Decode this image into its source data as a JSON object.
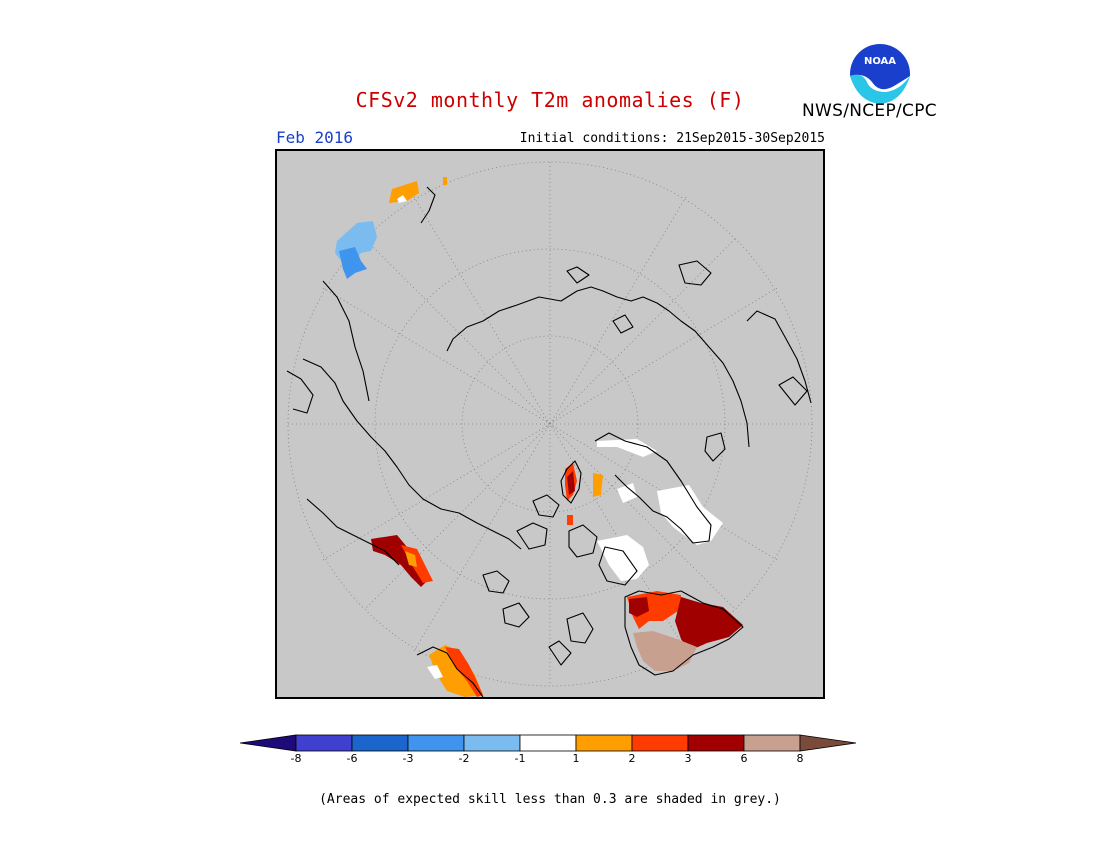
{
  "header": {
    "title": "CFSv2 monthly T2m anomalies (F)",
    "agency": "NWS/NCEP/CPC",
    "valid_month": "Feb 2016",
    "initial_conditions": "Initial conditions: 21Sep2015-30Sep2015",
    "logo_text": "NOAA"
  },
  "legend": {
    "bins": [
      {
        "label": "-8",
        "color": "#1e0a78"
      },
      {
        "label": "-6",
        "color": "#3f3fd0"
      },
      {
        "label": "-3",
        "color": "#1a66cc"
      },
      {
        "label": "-2",
        "color": "#3f94ee"
      },
      {
        "label": "-1",
        "color": "#7abcf0"
      },
      {
        "label": "1",
        "color": "#ffffff"
      },
      {
        "label": "2",
        "color": "#ff9e00"
      },
      {
        "label": "3",
        "color": "#ff3c00"
      },
      {
        "label": "6",
        "color": "#a00000"
      },
      {
        "label": "8",
        "color": "#c8a090"
      }
    ],
    "overflow_high_color": "#7a4a3a",
    "overflow_low_color": "#1e0a78"
  },
  "footnote": "(Areas of expected skill less than 0.3 are shaded in grey.)",
  "map": {
    "projection": "north polar stereographic",
    "background_color": "#c8c8c8"
  }
}
